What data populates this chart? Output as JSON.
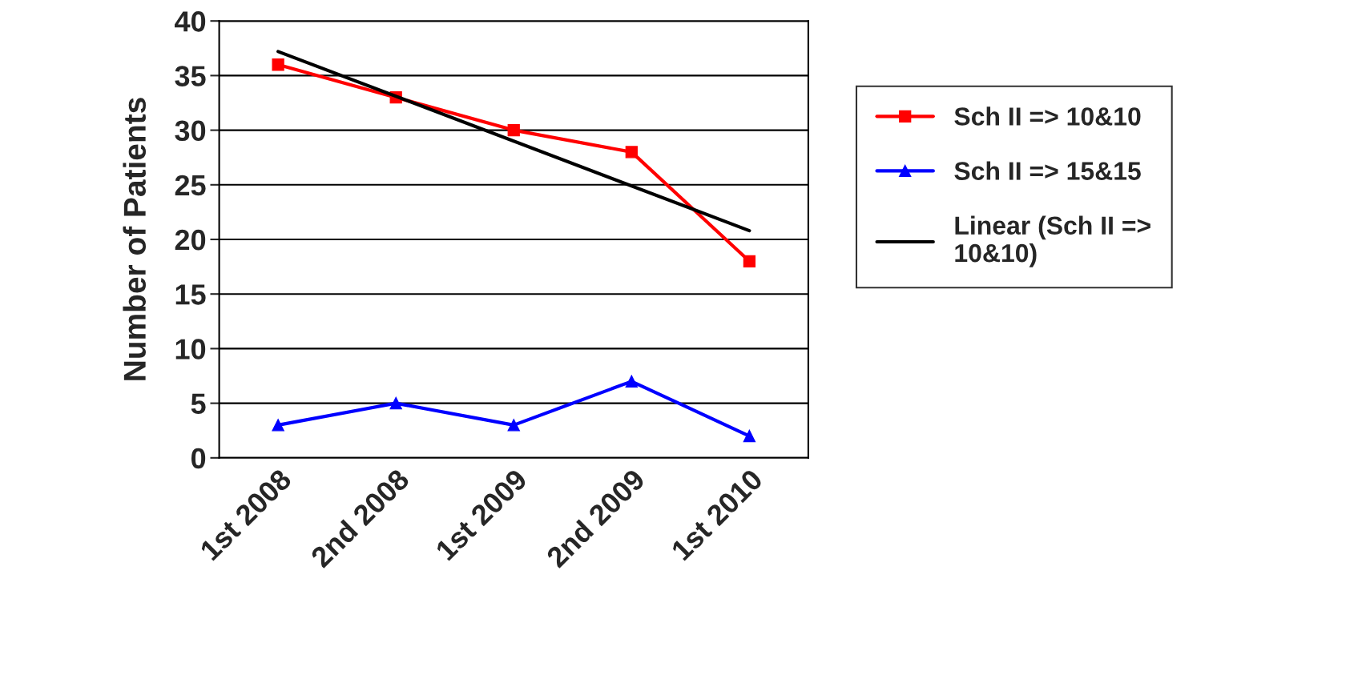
{
  "chart_data": {
    "type": "line",
    "ylabel": "Number of Patients",
    "categories": [
      "1st 2008",
      "2nd 2008",
      "1st 2009",
      "2nd 2009",
      "1st 2010"
    ],
    "series": [
      {
        "name": "Sch II => 10&10",
        "color": "#ff0000",
        "values": [
          36,
          33,
          30,
          28,
          18
        ],
        "marker": "square"
      },
      {
        "name": "Sch II => 15&15",
        "color": "#0000ff",
        "values": [
          3,
          5,
          3,
          7,
          2
        ],
        "marker": "triangle"
      },
      {
        "name": "Linear (Sch II => 10&10)",
        "color": "#000000",
        "x": [
          "1st 2008",
          "1st 2010"
        ],
        "values": [
          37.2,
          20.8
        ],
        "marker": "none"
      }
    ],
    "ylim": [
      0,
      40
    ],
    "yticks": [
      0,
      5,
      10,
      15,
      20,
      25,
      30,
      35,
      40
    ],
    "grid": "y",
    "legend": "right",
    "line_style": "solid"
  }
}
